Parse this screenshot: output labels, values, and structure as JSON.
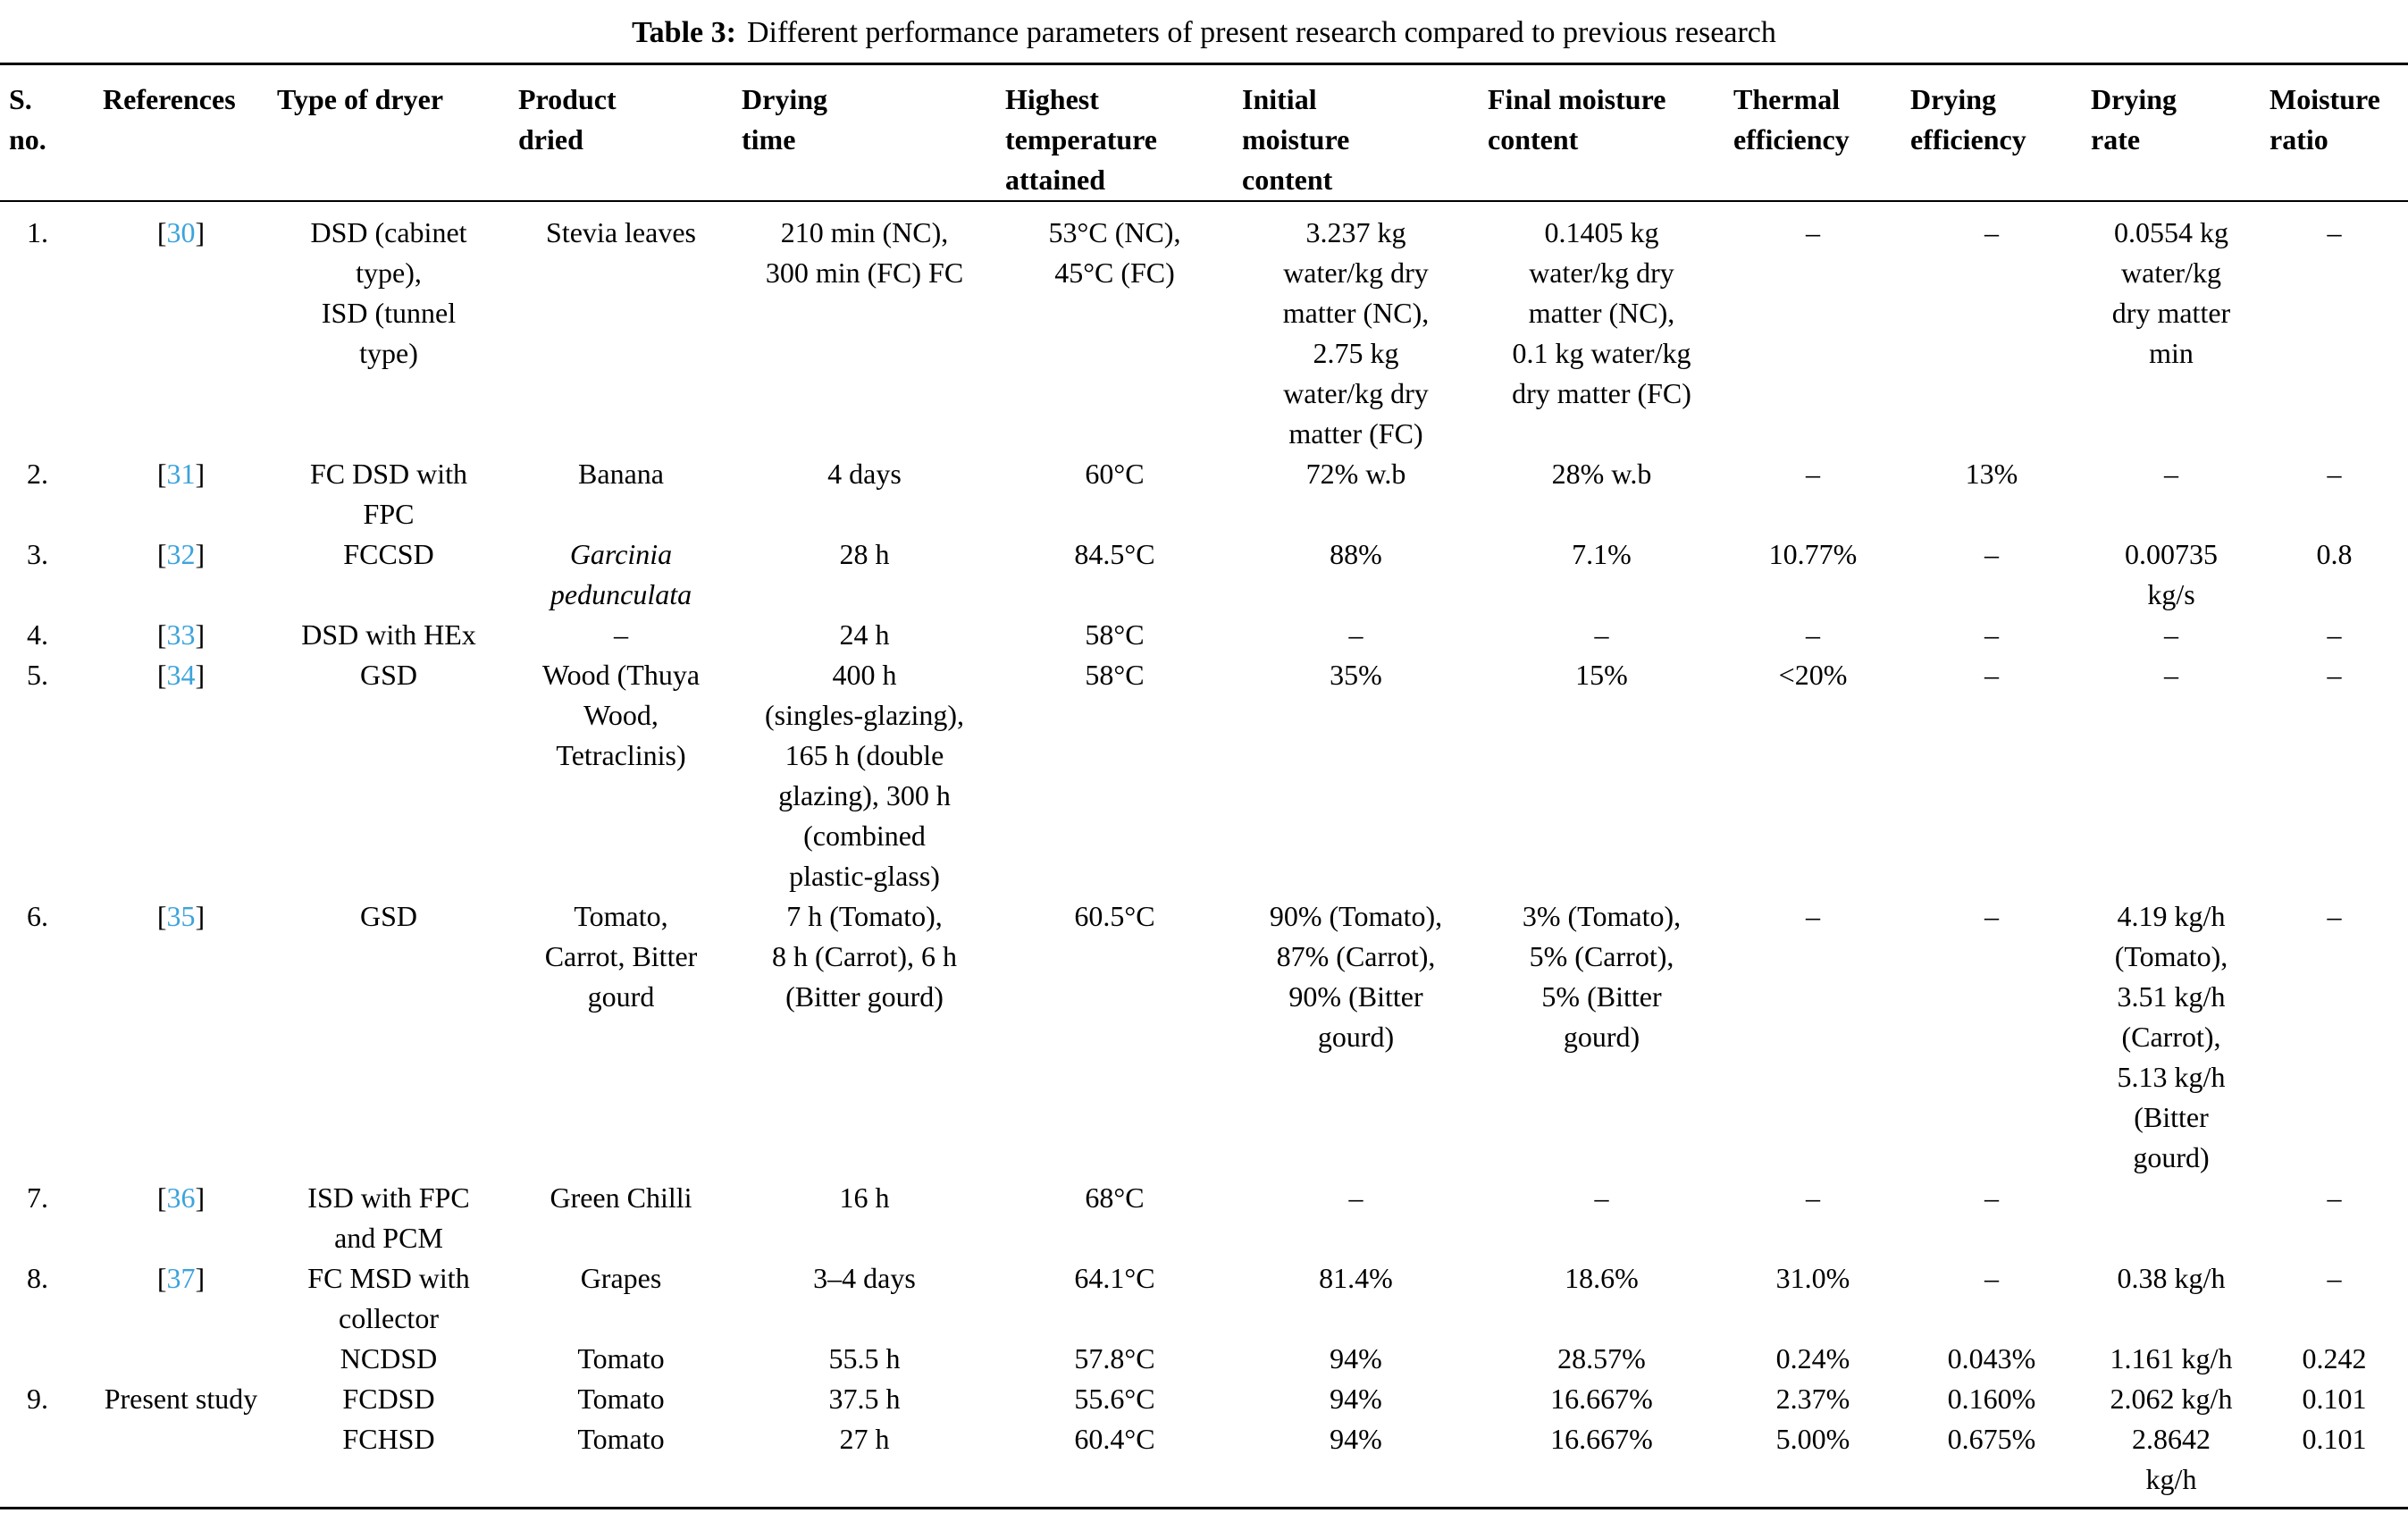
{
  "title": {
    "label": "Table 3:",
    "text": "Different performance parameters of present research compared to previous research"
  },
  "colors": {
    "reference_link": "#3ba3dc",
    "text": "#000000",
    "background": "#ffffff"
  },
  "punctuation": {
    "bracket_open": "[",
    "bracket_close": "]"
  },
  "table": {
    "columns": [
      {
        "key": "sno",
        "label": "S.\nno."
      },
      {
        "key": "ref",
        "label": "References"
      },
      {
        "key": "type_of_dryer",
        "label": "Type of dryer"
      },
      {
        "key": "product_dried",
        "label": "Product\ndried"
      },
      {
        "key": "drying_time",
        "label": "Drying\ntime"
      },
      {
        "key": "highest_temp",
        "label": "Highest\ntemperature\nattained"
      },
      {
        "key": "initial_mc",
        "label": "Initial\nmoisture\ncontent"
      },
      {
        "key": "final_mc",
        "label": "Final moisture\ncontent"
      },
      {
        "key": "thermal_eff",
        "label": "Thermal\nefficiency"
      },
      {
        "key": "drying_eff",
        "label": "Drying\nefficiency"
      },
      {
        "key": "drying_rate",
        "label": "Drying\nrate"
      },
      {
        "key": "moisture_ratio",
        "label": "Moisture\nratio"
      }
    ],
    "rows": [
      {
        "sno": "1.",
        "ref_num": "30",
        "ref_text": "",
        "type_of_dryer": "DSD (cabinet\ntype),\nISD (tunnel\ntype)",
        "product_dried": "Stevia leaves",
        "product_italic": false,
        "drying_time": "210 min (NC),\n300 min (FC) FC",
        "highest_temp": "53°C (NC),\n45°C (FC)",
        "initial_mc": "3.237 kg\nwater/kg dry\nmatter (NC),\n2.75 kg\nwater/kg dry\nmatter (FC)",
        "final_mc": "0.1405 kg\nwater/kg dry\nmatter (NC),\n0.1 kg water/kg\ndry matter (FC)",
        "thermal_eff": "–",
        "drying_eff": "–",
        "drying_rate": "0.0554 kg\nwater/kg\ndry matter\nmin",
        "moisture_ratio": "–"
      },
      {
        "sno": "2.",
        "ref_num": "31",
        "ref_text": "",
        "type_of_dryer": "FC DSD with\nFPC",
        "product_dried": "Banana",
        "product_italic": false,
        "drying_time": "4 days",
        "highest_temp": "60°C",
        "initial_mc": "72% w.b",
        "final_mc": "28% w.b",
        "thermal_eff": "–",
        "drying_eff": "13%",
        "drying_rate": "–",
        "moisture_ratio": "–"
      },
      {
        "sno": "3.",
        "ref_num": "32",
        "ref_text": "",
        "type_of_dryer": "FCCSD",
        "product_dried": "Garcinia\npedunculata",
        "product_italic": true,
        "drying_time": "28 h",
        "highest_temp": "84.5°C",
        "initial_mc": "88%",
        "final_mc": "7.1%",
        "thermal_eff": "10.77%",
        "drying_eff": "–",
        "drying_rate": "0.00735\nkg/s",
        "moisture_ratio": "0.8"
      },
      {
        "sno": "4.",
        "ref_num": "33",
        "ref_text": "",
        "type_of_dryer": "DSD with HEx",
        "product_dried": "–",
        "product_italic": false,
        "drying_time": "24 h",
        "highest_temp": "58°C",
        "initial_mc": "–",
        "final_mc": "–",
        "thermal_eff": "–",
        "drying_eff": "–",
        "drying_rate": "–",
        "moisture_ratio": "–"
      },
      {
        "sno": "5.",
        "ref_num": "34",
        "ref_text": "",
        "type_of_dryer": "GSD",
        "product_dried": "Wood (Thuya\nWood,\nTetraclinis)",
        "product_italic": false,
        "drying_time": "400 h\n(singles-glazing),\n165 h (double\nglazing), 300 h\n(combined\nplastic-glass)",
        "highest_temp": "58°C",
        "initial_mc": "35%",
        "final_mc": "15%",
        "thermal_eff": "<20%",
        "drying_eff": "–",
        "drying_rate": "–",
        "moisture_ratio": "–"
      },
      {
        "sno": "6.",
        "ref_num": "35",
        "ref_text": "",
        "type_of_dryer": "GSD",
        "product_dried": "Tomato,\nCarrot, Bitter\ngourd",
        "product_italic": false,
        "drying_time": "7 h (Tomato),\n8 h (Carrot), 6 h\n(Bitter gourd)",
        "highest_temp": "60.5°C",
        "initial_mc": "90% (Tomato),\n87% (Carrot),\n90% (Bitter\ngourd)",
        "final_mc": "3% (Tomato),\n5% (Carrot),\n5% (Bitter\ngourd)",
        "thermal_eff": "–",
        "drying_eff": "–",
        "drying_rate": "4.19 kg/h\n(Tomato),\n3.51 kg/h\n(Carrot),\n5.13 kg/h\n(Bitter\ngourd)",
        "moisture_ratio": "–"
      },
      {
        "sno": "7.",
        "ref_num": "36",
        "ref_text": "",
        "type_of_dryer": "ISD with FPC\nand PCM",
        "product_dried": "Green Chilli",
        "product_italic": false,
        "drying_time": "16 h",
        "highest_temp": "68°C",
        "initial_mc": "–",
        "final_mc": "–",
        "thermal_eff": "–",
        "drying_eff": "–",
        "drying_rate": "",
        "moisture_ratio": "–"
      },
      {
        "sno": "8.",
        "ref_num": "37",
        "ref_text": "",
        "type_of_dryer": "FC MSD with\ncollector",
        "product_dried": "Grapes",
        "product_italic": false,
        "drying_time": "3–4 days",
        "highest_temp": "64.1°C",
        "initial_mc": "81.4%",
        "final_mc": "18.6%",
        "thermal_eff": "31.0%",
        "drying_eff": "–",
        "drying_rate": "0.38 kg/h",
        "moisture_ratio": "–"
      },
      {
        "sno": "",
        "ref_num": "",
        "ref_text": "",
        "type_of_dryer": "NCDSD",
        "product_dried": "Tomato",
        "product_italic": false,
        "drying_time": "55.5 h",
        "highest_temp": "57.8°C",
        "initial_mc": "94%",
        "final_mc": "28.57%",
        "thermal_eff": "0.24%",
        "drying_eff": "0.043%",
        "drying_rate": "1.161 kg/h",
        "moisture_ratio": "0.242"
      },
      {
        "sno": "9.",
        "ref_num": "",
        "ref_text": "Present study",
        "type_of_dryer": "FCDSD",
        "product_dried": "Tomato",
        "product_italic": false,
        "drying_time": "37.5 h",
        "highest_temp": "55.6°C",
        "initial_mc": "94%",
        "final_mc": "16.667%",
        "thermal_eff": "2.37%",
        "drying_eff": "0.160%",
        "drying_rate": "2.062 kg/h",
        "moisture_ratio": "0.101"
      },
      {
        "sno": "",
        "ref_num": "",
        "ref_text": "",
        "type_of_dryer": "FCHSD",
        "product_dried": "Tomato",
        "product_italic": false,
        "drying_time": "27 h",
        "highest_temp": "60.4°C",
        "initial_mc": "94%",
        "final_mc": "16.667%",
        "thermal_eff": "5.00%",
        "drying_eff": "0.675%",
        "drying_rate": "2.8642\nkg/h",
        "moisture_ratio": "0.101"
      }
    ]
  }
}
